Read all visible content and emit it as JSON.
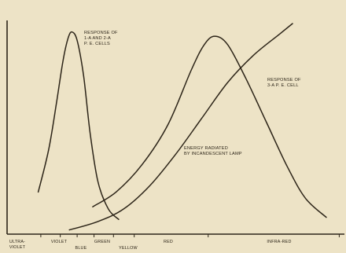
{
  "chart_data": {
    "type": "line",
    "title": "",
    "xlabel": "",
    "ylabel": "",
    "grid": false,
    "legend": "none",
    "x_categories": [
      {
        "label": "ULTRA-\nVIOLET",
        "pos": 0
      },
      {
        "label": "VIOLET",
        "pos": 1
      },
      {
        "label": "BLUE",
        "pos": 2
      },
      {
        "label": "GREEN",
        "pos": 3
      },
      {
        "label": "YELLOW",
        "pos": 4
      },
      {
        "label": "RED",
        "pos": 6
      },
      {
        "label": "INFRA-RED",
        "pos": 10
      }
    ],
    "xlim": [
      0,
      13
    ],
    "ylim": [
      0,
      1
    ],
    "series": [
      {
        "name": "RESPONSE OF\n1-A AND 2-A\nP. E. CELLS",
        "points": [
          [
            1.2,
            0.2
          ],
          [
            1.6,
            0.4
          ],
          [
            1.9,
            0.62
          ],
          [
            2.15,
            0.82
          ],
          [
            2.35,
            0.93
          ],
          [
            2.5,
            0.96
          ],
          [
            2.7,
            0.92
          ],
          [
            2.95,
            0.75
          ],
          [
            3.2,
            0.48
          ],
          [
            3.5,
            0.25
          ],
          [
            3.9,
            0.12
          ],
          [
            4.3,
            0.07
          ]
        ]
      },
      {
        "name": "RESPONSE OF\n3-A P. E. CELL",
        "points": [
          [
            3.3,
            0.13
          ],
          [
            4.2,
            0.2
          ],
          [
            5.2,
            0.33
          ],
          [
            6.2,
            0.52
          ],
          [
            7.1,
            0.78
          ],
          [
            7.6,
            0.9
          ],
          [
            8.0,
            0.94
          ],
          [
            8.5,
            0.9
          ],
          [
            9.2,
            0.74
          ],
          [
            10.0,
            0.53
          ],
          [
            10.8,
            0.32
          ],
          [
            11.5,
            0.17
          ],
          [
            12.3,
            0.08
          ]
        ]
      },
      {
        "name": "ENERGY RADIATED\nBY INCANDESCENT LAMP",
        "points": [
          [
            2.4,
            0.02
          ],
          [
            3.5,
            0.06
          ],
          [
            4.5,
            0.12
          ],
          [
            5.5,
            0.23
          ],
          [
            6.5,
            0.38
          ],
          [
            7.5,
            0.55
          ],
          [
            8.5,
            0.72
          ],
          [
            9.5,
            0.85
          ],
          [
            10.5,
            0.95
          ],
          [
            11.0,
            1.0
          ]
        ]
      }
    ]
  }
}
